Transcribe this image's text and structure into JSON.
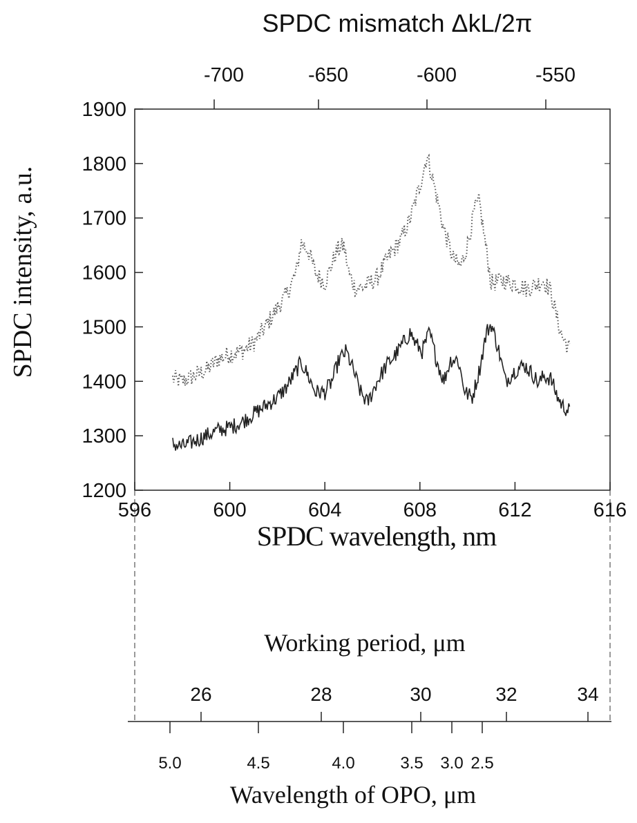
{
  "chart_data": {
    "type": "line",
    "top_axis_title": "SPDC mismatch ΔkL/2π",
    "top_axis_ticks": [
      "-700",
      "-650",
      "-600",
      "-550"
    ],
    "top_axis_tick_values": [
      -700,
      -650,
      -600,
      -550
    ],
    "xlabel": "SPDC wavelength, nm",
    "ylabel": "SPDC intensity, a.u.",
    "xlim": [
      596,
      616
    ],
    "ylim": [
      1200,
      1900
    ],
    "x_ticks": [
      "596",
      "600",
      "604",
      "608",
      "612",
      "616"
    ],
    "x_tick_values": [
      596,
      600,
      604,
      608,
      612,
      616
    ],
    "y_ticks": [
      "1200",
      "1300",
      "1400",
      "1500",
      "1600",
      "1700",
      "1800",
      "1900"
    ],
    "y_tick_values": [
      1200,
      1300,
      1400,
      1500,
      1600,
      1700,
      1800,
      1900
    ],
    "grid": false,
    "series": [
      {
        "style": "dotted",
        "color": "#555555",
        "x": [
          597.6,
          598.0,
          598.5,
          599.0,
          599.5,
          600.0,
          600.5,
          601.0,
          601.5,
          602.0,
          602.4,
          602.8,
          603.0,
          603.3,
          603.6,
          604.0,
          604.5,
          604.8,
          605.0,
          605.3,
          605.7,
          606.2,
          606.7,
          607.2,
          607.6,
          608.0,
          608.3,
          608.6,
          609.0,
          609.4,
          609.7,
          610.0,
          610.3,
          610.5,
          610.8,
          611.0,
          611.5,
          612.0,
          612.5,
          613.0,
          613.2,
          613.5,
          613.8,
          614.0,
          614.3
        ],
        "y": [
          1405,
          1400,
          1410,
          1420,
          1440,
          1450,
          1455,
          1470,
          1500,
          1535,
          1560,
          1600,
          1655,
          1640,
          1600,
          1580,
          1640,
          1650,
          1600,
          1570,
          1575,
          1590,
          1630,
          1660,
          1700,
          1760,
          1815,
          1760,
          1680,
          1625,
          1610,
          1650,
          1715,
          1730,
          1640,
          1580,
          1585,
          1580,
          1570,
          1580,
          1585,
          1565,
          1510,
          1480,
          1460
        ]
      },
      {
        "style": "solid",
        "color": "#222222",
        "x": [
          597.6,
          598.0,
          598.5,
          599.0,
          599.5,
          600.0,
          600.5,
          601.0,
          601.5,
          602.0,
          602.4,
          602.8,
          603.0,
          603.3,
          603.6,
          604.0,
          604.3,
          604.6,
          604.9,
          605.2,
          605.5,
          605.8,
          606.2,
          606.6,
          607.0,
          607.3,
          607.6,
          607.8,
          608.1,
          608.4,
          608.7,
          609.0,
          609.3,
          609.6,
          609.9,
          610.2,
          610.5,
          610.8,
          611.0,
          611.3,
          611.6,
          612.0,
          612.4,
          612.8,
          613.0,
          613.2,
          613.5,
          613.8,
          614.0,
          614.3
        ],
        "y": [
          1285,
          1280,
          1290,
          1300,
          1310,
          1315,
          1325,
          1340,
          1355,
          1370,
          1390,
          1420,
          1435,
          1410,
          1380,
          1380,
          1400,
          1440,
          1455,
          1420,
          1380,
          1360,
          1400,
          1430,
          1450,
          1470,
          1490,
          1470,
          1455,
          1490,
          1440,
          1400,
          1440,
          1440,
          1380,
          1370,
          1420,
          1490,
          1505,
          1460,
          1400,
          1420,
          1430,
          1410,
          1395,
          1410,
          1405,
          1370,
          1355,
          1345
        ]
      }
    ],
    "period_axis_title": "Working period, μm",
    "period_axis_ticks": [
      "26",
      "28",
      "30",
      "32",
      "34"
    ],
    "period_axis_tick_values": [
      26,
      28,
      30,
      32,
      34
    ],
    "opo_axis_title": "Wavelength of OPO, μm",
    "opo_axis_ticks": [
      "5.0",
      "4.5",
      "4.0",
      "3.5",
      "3.0",
      "2.5"
    ],
    "opo_axis_tick_values": [
      5.0,
      4.5,
      4.0,
      3.5,
      3.0,
      2.5
    ]
  }
}
